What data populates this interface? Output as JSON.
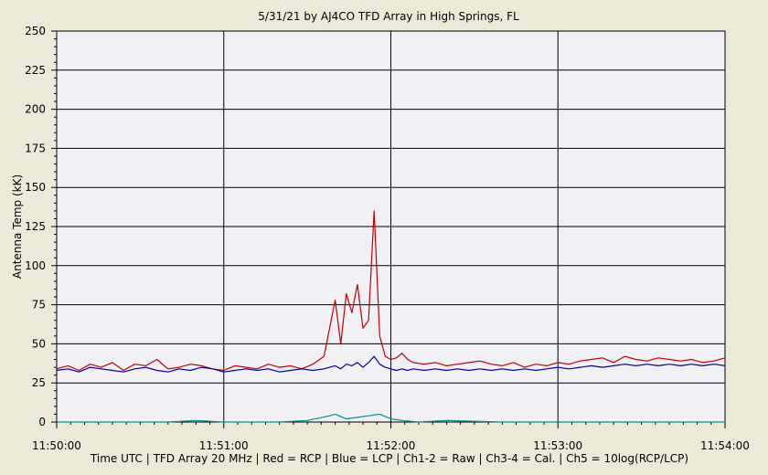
{
  "chart_data": {
    "type": "line",
    "title": "5/31/21  by  AJ4CO TFD Array  in  High Springs, FL",
    "ylabel": "Antenna Temp (kK)",
    "xlabel": "Time UTC | TFD Array 20 MHz | Red = RCP | Blue = LCP | Ch1-2 = Raw | Ch3-4 = Cal. | Ch5 = 10log(RCP/LCP)",
    "xlim": [
      0,
      240
    ],
    "ylim": [
      0,
      250
    ],
    "x_ticks": [
      {
        "value": 0,
        "label": "11:50:00"
      },
      {
        "value": 60,
        "label": "11:51:00"
      },
      {
        "value": 120,
        "label": "11:52:00"
      },
      {
        "value": 180,
        "label": "11:53:00"
      },
      {
        "value": 240,
        "label": "11:54:00"
      }
    ],
    "y_ticks": [
      {
        "value": 0,
        "label": "0"
      },
      {
        "value": 25,
        "label": "25"
      },
      {
        "value": 50,
        "label": "50"
      },
      {
        "value": 75,
        "label": "75"
      },
      {
        "value": 100,
        "label": "100"
      },
      {
        "value": 125,
        "label": "125"
      },
      {
        "value": 150,
        "label": "150"
      },
      {
        "value": 175,
        "label": "175"
      },
      {
        "value": 200,
        "label": "200"
      },
      {
        "value": 225,
        "label": "225"
      },
      {
        "value": 250,
        "label": "250"
      }
    ],
    "grid": true,
    "series": [
      {
        "color": "#c00000",
        "x": [
          0,
          4,
          8,
          12,
          16,
          20,
          24,
          28,
          32,
          36,
          40,
          44,
          48,
          52,
          56,
          60,
          64,
          68,
          72,
          76,
          80,
          84,
          88,
          92,
          96,
          98,
          100,
          102,
          104,
          106,
          108,
          110,
          112,
          114,
          116,
          118,
          120,
          122,
          124,
          126,
          128,
          132,
          136,
          140,
          144,
          148,
          152,
          156,
          160,
          164,
          168,
          172,
          176,
          180,
          184,
          188,
          192,
          196,
          200,
          204,
          208,
          212,
          216,
          220,
          224,
          228,
          232,
          236,
          240
        ],
        "values": [
          34,
          36,
          33,
          37,
          35,
          38,
          33,
          37,
          36,
          40,
          34,
          35,
          37,
          36,
          34,
          33,
          36,
          35,
          34,
          37,
          35,
          36,
          34,
          37,
          42,
          60,
          78,
          50,
          82,
          70,
          88,
          60,
          65,
          135,
          55,
          42,
          40,
          41,
          44,
          40,
          38,
          37,
          38,
          36,
          37,
          38,
          39,
          37,
          36,
          38,
          35,
          37,
          36,
          38,
          37,
          39,
          40,
          41,
          38,
          42,
          40,
          39,
          41,
          40,
          39,
          40,
          38,
          39,
          41
        ]
      },
      {
        "color": "#0000a0",
        "x": [
          0,
          4,
          8,
          12,
          16,
          20,
          24,
          28,
          32,
          36,
          40,
          44,
          48,
          52,
          56,
          60,
          64,
          68,
          72,
          76,
          80,
          84,
          88,
          92,
          96,
          98,
          100,
          102,
          104,
          106,
          108,
          110,
          112,
          114,
          116,
          118,
          120,
          122,
          124,
          126,
          128,
          132,
          136,
          140,
          144,
          148,
          152,
          156,
          160,
          164,
          168,
          172,
          176,
          180,
          184,
          188,
          192,
          196,
          200,
          204,
          208,
          212,
          216,
          220,
          224,
          228,
          232,
          236,
          240
        ],
        "values": [
          33,
          34,
          32,
          35,
          34,
          33,
          32,
          34,
          35,
          33,
          32,
          34,
          33,
          35,
          34,
          32,
          33,
          34,
          33,
          34,
          32,
          33,
          34,
          33,
          34,
          35,
          36,
          34,
          37,
          36,
          38,
          35,
          38,
          42,
          37,
          35,
          34,
          33,
          34,
          33,
          34,
          33,
          34,
          33,
          34,
          33,
          34,
          33,
          34,
          33,
          34,
          33,
          34,
          35,
          34,
          35,
          36,
          35,
          36,
          37,
          36,
          37,
          36,
          37,
          36,
          37,
          36,
          37,
          36
        ]
      },
      {
        "color": "#009090",
        "x": [
          0,
          20,
          40,
          50,
          60,
          80,
          90,
          98,
          100,
          104,
          108,
          112,
          116,
          120,
          124,
          130,
          140,
          160,
          180,
          200,
          220,
          240
        ],
        "values": [
          0,
          0,
          0,
          1,
          0,
          0,
          1,
          4,
          5,
          2,
          3,
          4,
          5,
          2,
          1,
          0,
          1,
          0,
          0,
          0,
          0,
          0
        ]
      }
    ]
  }
}
